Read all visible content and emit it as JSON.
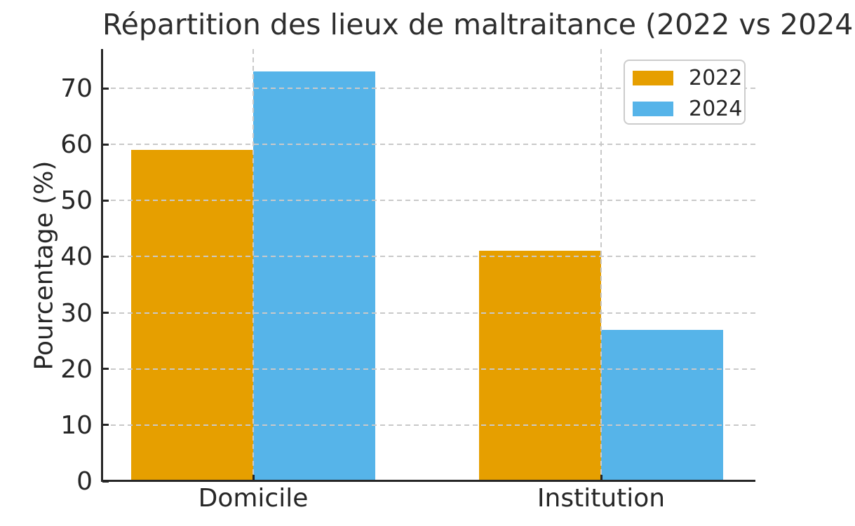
{
  "chart_data": {
    "type": "bar",
    "title": "Répartition des lieux de maltraitance (2022 vs 2024)",
    "categories": [
      "Domicile",
      "Institution"
    ],
    "series": [
      {
        "name": "2022",
        "color": "#E69F00",
        "values": [
          59,
          41
        ]
      },
      {
        "name": "2024",
        "color": "#56B4E9",
        "values": [
          73,
          27
        ]
      }
    ],
    "xlabel": "",
    "ylabel": "Pourcentage (%)",
    "ylim": [
      0,
      77
    ],
    "yticks": [
      0,
      10,
      20,
      30,
      40,
      50,
      60,
      70
    ],
    "grid": true,
    "grid_style": "dashed",
    "grid_color": "#c9c9c9",
    "legend_position": "upper right",
    "colors": {
      "text": "#262626",
      "title": "#2e2e2e",
      "spine": "#262626",
      "background": "#ffffff"
    }
  }
}
